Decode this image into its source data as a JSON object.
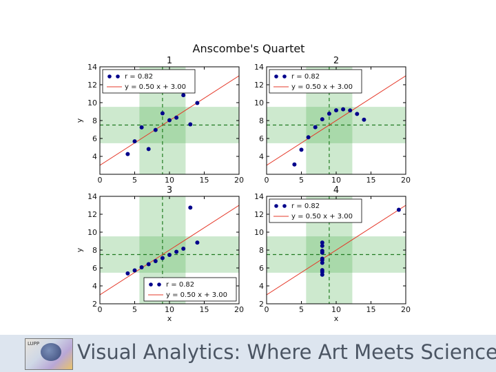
{
  "chart_data": {
    "type": "scatter",
    "title": "Anscombe's Quartet",
    "colors": {
      "points": "#00008b",
      "fit_line": "#e5392a",
      "mean_line": "#1f7a1f",
      "band": "#4caf50"
    },
    "panels": [
      {
        "title": "1",
        "xlim": [
          0,
          20
        ],
        "ylim": [
          2,
          14
        ],
        "xticks": [
          0,
          5,
          10,
          15,
          20
        ],
        "yticks": [
          4,
          6,
          8,
          10,
          12,
          14
        ],
        "ylabel": "y",
        "xlabel": "",
        "points": [
          [
            10,
            8.04
          ],
          [
            8,
            6.95
          ],
          [
            13,
            7.58
          ],
          [
            9,
            8.81
          ],
          [
            11,
            8.33
          ],
          [
            14,
            9.96
          ],
          [
            6,
            7.24
          ],
          [
            4,
            4.26
          ],
          [
            12,
            10.84
          ],
          [
            7,
            4.82
          ],
          [
            5,
            5.68
          ]
        ],
        "mean_x": 9,
        "mean_y": 7.5,
        "std_x": 3.32,
        "std_y": 2.03,
        "fit": {
          "slope": 0.5,
          "intercept": 3.0
        },
        "legend": {
          "position": "upper-left",
          "point_label": "r = 0.82",
          "line_label": "y = 0.50 x + 3.00"
        }
      },
      {
        "title": "2",
        "xlim": [
          0,
          20
        ],
        "ylim": [
          2,
          14
        ],
        "xticks": [
          0,
          5,
          10,
          15,
          20
        ],
        "yticks": [
          4,
          6,
          8,
          10,
          12,
          14
        ],
        "ylabel": "",
        "xlabel": "",
        "points": [
          [
            10,
            9.14
          ],
          [
            8,
            8.14
          ],
          [
            13,
            8.74
          ],
          [
            9,
            8.77
          ],
          [
            11,
            9.26
          ],
          [
            14,
            8.1
          ],
          [
            6,
            6.13
          ],
          [
            4,
            3.1
          ],
          [
            12,
            9.13
          ],
          [
            7,
            7.26
          ],
          [
            5,
            4.74
          ]
        ],
        "mean_x": 9,
        "mean_y": 7.5,
        "std_x": 3.32,
        "std_y": 2.03,
        "fit": {
          "slope": 0.5,
          "intercept": 3.0
        },
        "legend": {
          "position": "upper-left",
          "point_label": "r = 0.82",
          "line_label": "y = 0.50 x + 3.00"
        }
      },
      {
        "title": "3",
        "xlim": [
          0,
          20
        ],
        "ylim": [
          2,
          14
        ],
        "xticks": [
          0,
          5,
          10,
          15,
          20
        ],
        "yticks": [
          2,
          4,
          6,
          8,
          10,
          12,
          14
        ],
        "ylabel": "y",
        "xlabel": "x",
        "points": [
          [
            10,
            7.46
          ],
          [
            8,
            6.77
          ],
          [
            13,
            12.74
          ],
          [
            9,
            7.11
          ],
          [
            11,
            7.81
          ],
          [
            14,
            8.84
          ],
          [
            6,
            6.08
          ],
          [
            4,
            5.39
          ],
          [
            12,
            8.15
          ],
          [
            7,
            6.42
          ],
          [
            5,
            5.73
          ]
        ],
        "mean_x": 9,
        "mean_y": 7.5,
        "std_x": 3.32,
        "std_y": 2.03,
        "fit": {
          "slope": 0.5,
          "intercept": 3.0
        },
        "legend": {
          "position": "lower-right",
          "point_label": "r = 0.82",
          "line_label": "y = 0.50 x + 3.00"
        }
      },
      {
        "title": "4",
        "xlim": [
          0,
          20
        ],
        "ylim": [
          2,
          14
        ],
        "xticks": [
          0,
          5,
          10,
          15,
          20
        ],
        "yticks": [
          2,
          4,
          6,
          8,
          10,
          12,
          14
        ],
        "ylabel": "",
        "xlabel": "x",
        "points": [
          [
            8,
            6.58
          ],
          [
            8,
            5.76
          ],
          [
            8,
            7.71
          ],
          [
            8,
            8.84
          ],
          [
            8,
            8.47
          ],
          [
            8,
            7.04
          ],
          [
            8,
            5.25
          ],
          [
            19,
            12.5
          ],
          [
            8,
            5.56
          ],
          [
            8,
            7.91
          ],
          [
            8,
            6.89
          ]
        ],
        "mean_x": 9,
        "mean_y": 7.5,
        "std_x": 3.32,
        "std_y": 2.03,
        "fit": {
          "slope": 0.5,
          "intercept": 3.0
        },
        "legend": {
          "position": "upper-left",
          "point_label": "r = 0.82",
          "line_label": "y = 0.50 x + 3.00"
        }
      }
    ]
  },
  "footer": {
    "title": "Visual Analytics: Where Art Meets Science",
    "logo_text": "LUPP"
  }
}
